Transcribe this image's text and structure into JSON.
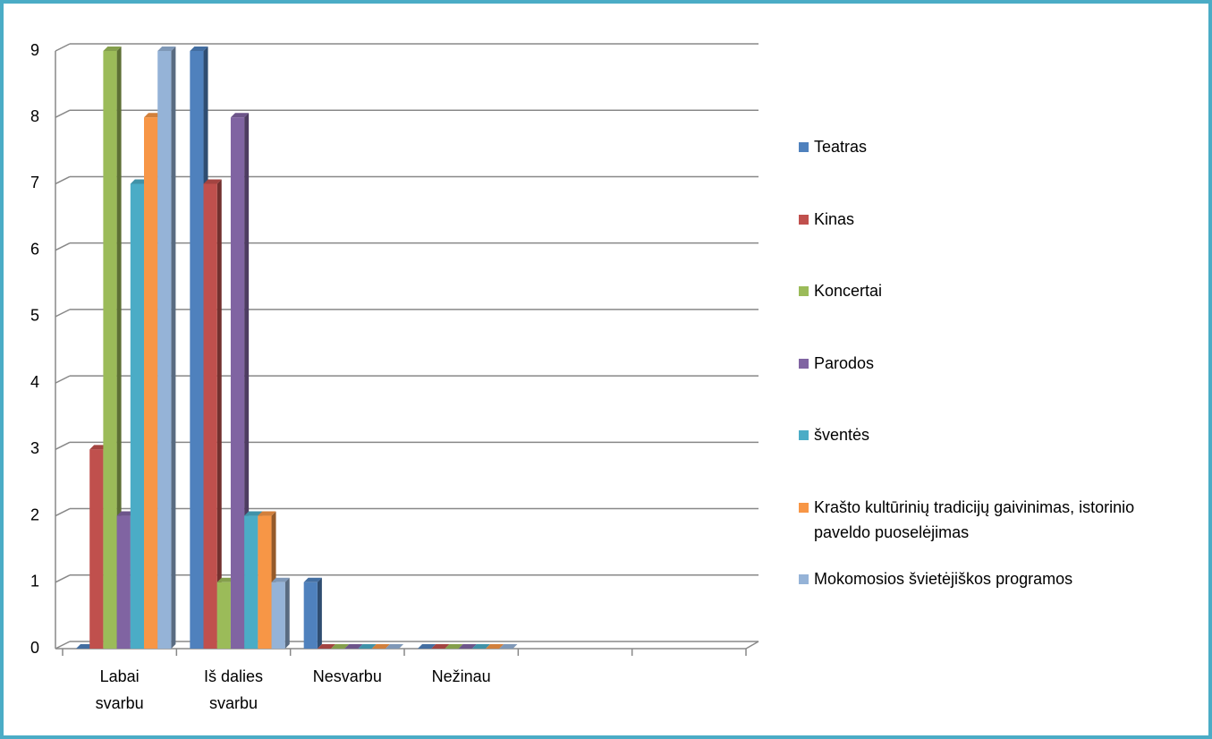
{
  "chart_data": {
    "type": "bar",
    "categories": [
      "Labai svarbu",
      "Iš dalies svarbu",
      "Nesvarbu",
      "Nežinau",
      null,
      null
    ],
    "series": [
      {
        "name": "Teatras",
        "color": "#4f81bd",
        "values": [
          0,
          9,
          1,
          0,
          null,
          null
        ]
      },
      {
        "name": "Kinas",
        "color": "#c0504d",
        "values": [
          3,
          7,
          0,
          0,
          null,
          null
        ]
      },
      {
        "name": "Koncertai",
        "color": "#9bbb59",
        "values": [
          9,
          1,
          0,
          0,
          null,
          null
        ]
      },
      {
        "name": "Parodos",
        "color": "#8064a2",
        "values": [
          2,
          8,
          0,
          0,
          null,
          null
        ]
      },
      {
        "name": "šventės",
        "color": "#4bacc6",
        "values": [
          7,
          2,
          0,
          0,
          null,
          null
        ]
      },
      {
        "name": "Krašto kultūrinių tradicijų gaivinimas, istorinio paveldo puoselėjimas",
        "color": "#f79646",
        "values": [
          8,
          2,
          0,
          0,
          null,
          null
        ]
      },
      {
        "name": "Mokomosios švietėjiškos programos",
        "color": "#95b3d7",
        "values": [
          9,
          1,
          0,
          0,
          null,
          null
        ]
      }
    ],
    "ylim": [
      0,
      9
    ],
    "yticks": [
      0,
      1,
      2,
      3,
      4,
      5,
      6,
      7,
      8,
      9
    ],
    "grid": true,
    "legend": "right"
  }
}
